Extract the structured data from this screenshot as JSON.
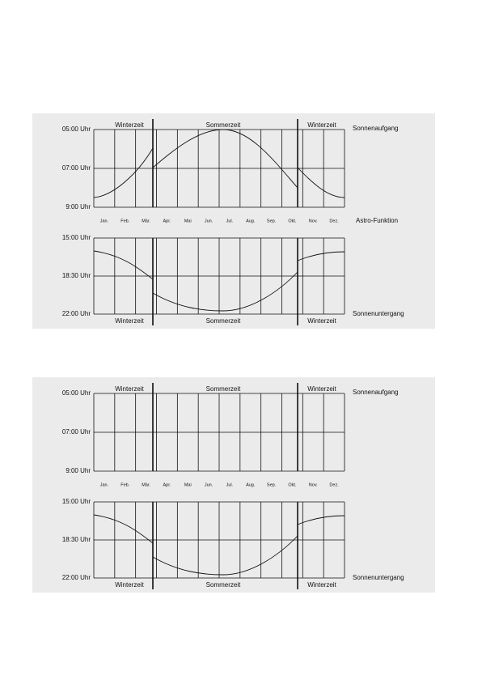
{
  "panels": [
    {
      "season_top": [
        "Winterzeit",
        "Sommerzeit",
        "Winterzeit"
      ],
      "times_top": [
        "05:00 Uhr",
        "07:00 Uhr",
        "9:00 Uhr"
      ],
      "months": [
        "Jan.",
        "Feb.",
        "Mär.",
        "Apr.",
        "Mai",
        "Jun.",
        "Jul.",
        "Aug.",
        "Sep.",
        "Okt.",
        "Nov.",
        "Dez."
      ],
      "times_bottom": [
        "15:00 Uhr",
        "18:30 Uhr",
        "22:00 Uhr"
      ],
      "season_bottom": [
        "Winterzeit",
        "Sommerzeit",
        "Winterzeit"
      ],
      "sunrise_label": "Sonnenaufgang",
      "astro_label": "Astro-Funktion",
      "sunset_label": "Sonnenuntergang"
    },
    {
      "season_top": [
        "Winterzeit",
        "Sommerzeit",
        "Winterzeit"
      ],
      "times_top": [
        "05:00 Uhr",
        "07:00 Uhr",
        "9:00 Uhr"
      ],
      "months": [
        "Jan.",
        "Feb.",
        "Mär.",
        "Apr.",
        "Mai",
        "Jun.",
        "Jul.",
        "Aug.",
        "Sep.",
        "Okt.",
        "Nov.",
        "Dez."
      ],
      "times_bottom": [
        "15:00 Uhr",
        "18:30 Uhr",
        "22:00 Uhr"
      ],
      "season_bottom": [
        "Winterzeit",
        "Sommerzeit",
        "Winterzeit"
      ],
      "sunrise_label": "Sonnenaufgang",
      "sunset_label": "Sonnenuntergang"
    }
  ]
}
